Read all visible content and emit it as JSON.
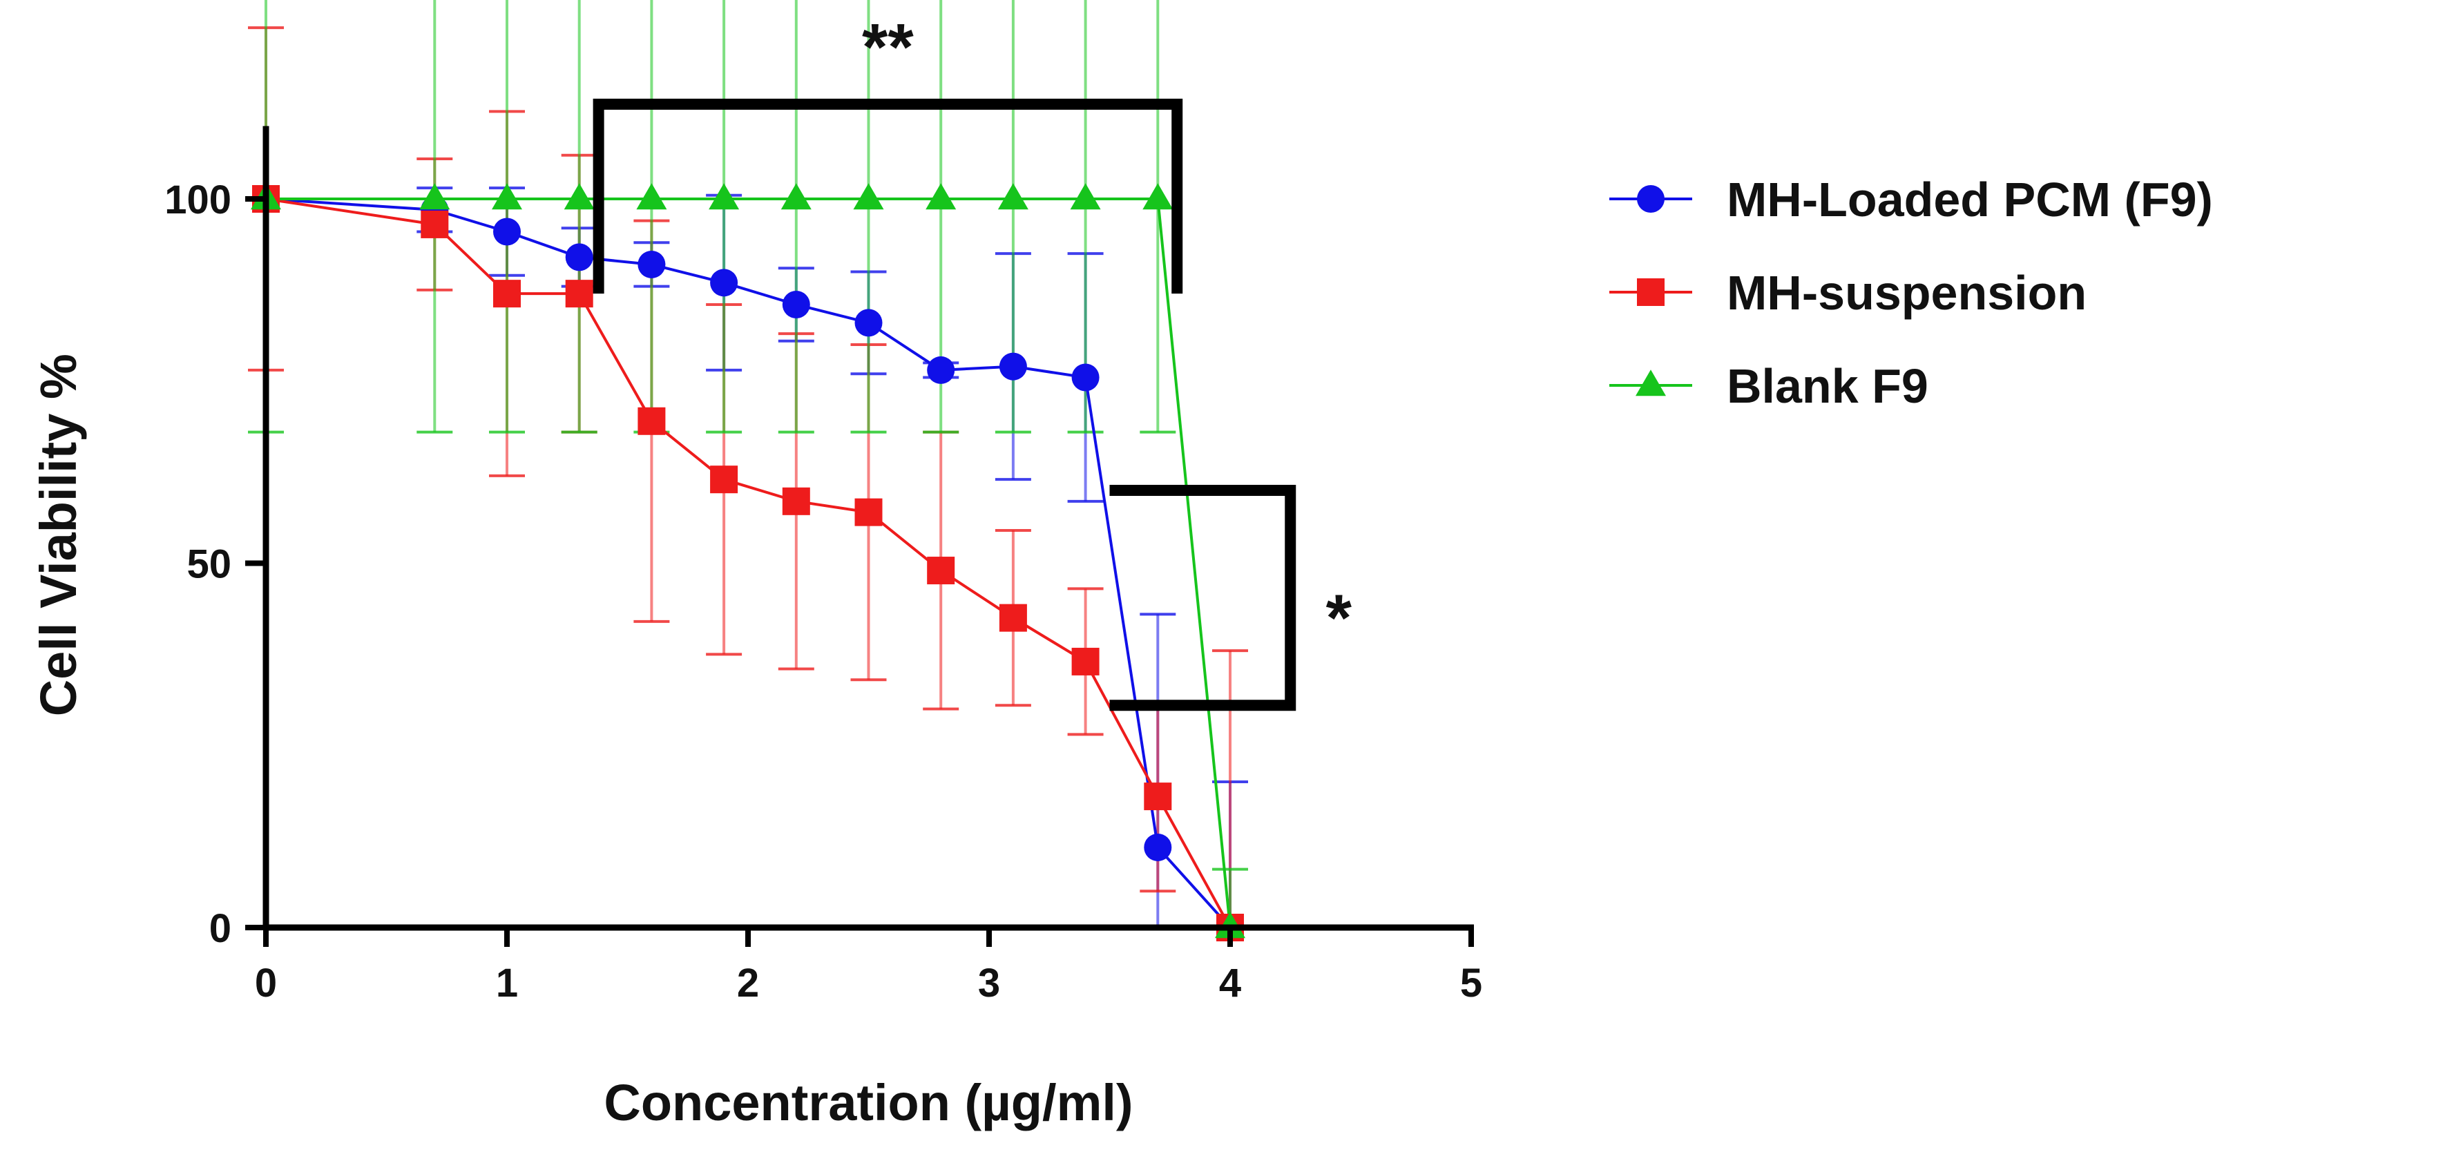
{
  "chart_data": {
    "type": "line",
    "title": "",
    "xlabel": "Concentration (µg/ml)",
    "ylabel": "Cell Viability %",
    "xlim": [
      0,
      5
    ],
    "ylim": [
      0,
      110
    ],
    "xticks": [
      0,
      1,
      2,
      3,
      4,
      5
    ],
    "yticks": [
      0,
      50,
      100
    ],
    "xtick_labels": [
      "0",
      "1",
      "2",
      "3",
      "4",
      "5"
    ],
    "ytick_labels": [
      "0",
      "50",
      "100"
    ],
    "grid": false,
    "legend_position": "right",
    "series": [
      {
        "name": "MH-Loaded PCM (F9)",
        "color": "#1010e8",
        "marker": "circle",
        "x": [
          0,
          0.7,
          1.0,
          1.3,
          1.6,
          1.9,
          2.2,
          2.5,
          2.8,
          3.1,
          3.4,
          3.7,
          4.0
        ],
        "y": [
          100,
          98.5,
          95.5,
          92,
          91,
          88.5,
          85.5,
          83,
          76.5,
          77,
          75.5,
          11,
          0
        ],
        "err": [
          0,
          3,
          6,
          4,
          3,
          12,
          5,
          7,
          1,
          15.5,
          17,
          32,
          20
        ]
      },
      {
        "name": "MH-suspension",
        "color": "#ee1c1c",
        "marker": "square",
        "x": [
          0,
          0.7,
          1.0,
          1.3,
          1.6,
          1.9,
          2.2,
          2.5,
          2.8,
          3.1,
          3.4,
          3.7,
          4.0
        ],
        "y": [
          100,
          96.5,
          87,
          87,
          69.5,
          61.5,
          58.5,
          57,
          49,
          42.5,
          36.5,
          18,
          0
        ],
        "err": [
          23.5,
          9,
          25,
          19,
          27.5,
          24,
          23,
          23,
          19,
          12,
          10,
          13,
          38
        ]
      },
      {
        "name": "Blank F9",
        "color": "#16c41c",
        "marker": "triangle",
        "x": [
          0,
          0.7,
          1.0,
          1.3,
          1.6,
          1.9,
          2.2,
          2.5,
          2.8,
          3.1,
          3.4,
          3.7,
          4.0
        ],
        "y": [
          100,
          100,
          100,
          100,
          100,
          100,
          100,
          100,
          100,
          100,
          100,
          100,
          0
        ],
        "err": [
          32,
          32,
          32,
          32,
          32,
          32,
          32,
          32,
          32,
          32,
          32,
          32,
          8
        ]
      }
    ],
    "significance": [
      {
        "label": "**",
        "x_start": 1.38,
        "x_end": 3.78,
        "y_top": 113,
        "y_left_end": 87,
        "y_right_end": 87,
        "orientation": "top"
      },
      {
        "label": "*",
        "x_start": 3.5,
        "x_end": 4.25,
        "y_top": 60,
        "y_bottom": 30.5,
        "orientation": "right"
      }
    ]
  }
}
